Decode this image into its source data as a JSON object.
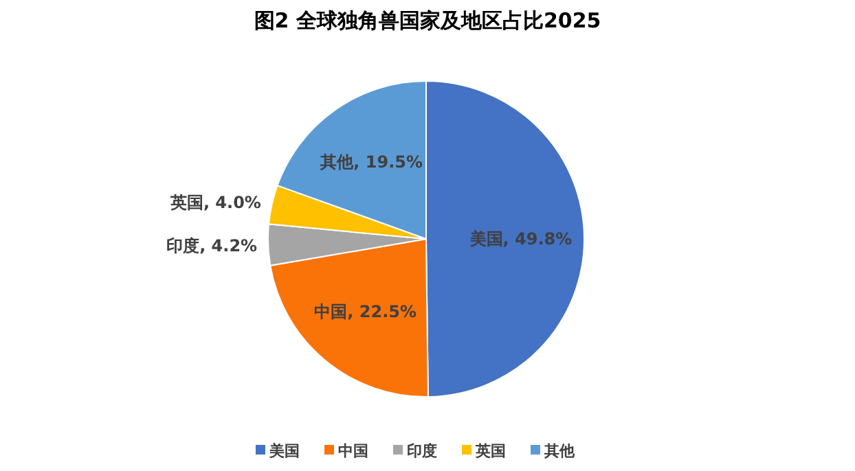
{
  "chart_data": {
    "type": "pie",
    "title": "图2  全球独角兽国家及地区占比2025",
    "categories": [
      "美国",
      "中国",
      "印度",
      "英国",
      "其他"
    ],
    "values": [
      49.8,
      22.5,
      4.2,
      4.0,
      19.5
    ],
    "colors": [
      "#4472c4",
      "#fa7309",
      "#a5a5a5",
      "#ffc000",
      "#5b9bd5"
    ],
    "value_labels": [
      "美国, 49.8%",
      "中国, 22.5%",
      "印度, 4.2%",
      "英国, 4.0%",
      "其他, 19.5%"
    ],
    "legend": "bottom"
  }
}
